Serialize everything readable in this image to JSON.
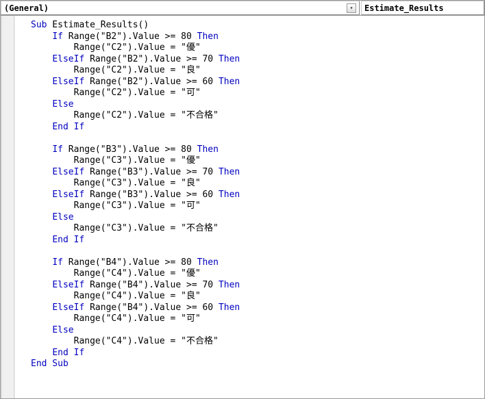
{
  "dropdowns": {
    "object": "(General)",
    "procedure": "Estimate_Results"
  },
  "code": {
    "sub_name": "Estimate_Results",
    "blocks": [
      {
        "src": "B2",
        "dst": "C2"
      },
      {
        "src": "B3",
        "dst": "C3"
      },
      {
        "src": "B4",
        "dst": "C4"
      }
    ],
    "thresholds": [
      {
        "op": ">=",
        "val": "80",
        "grade": "優"
      },
      {
        "op": ">=",
        "val": "70",
        "grade": "良"
      },
      {
        "op": ">=",
        "val": "60",
        "grade": "可"
      }
    ],
    "else_grade": "不合格",
    "keywords": {
      "sub": "Sub",
      "end_sub": "End Sub",
      "if": "If",
      "then": "Then",
      "elseif": "ElseIf",
      "else": "Else",
      "end_if": "End If"
    },
    "fn": "Range",
    "prop": "Value"
  },
  "colors": {
    "keyword": "#0000c0",
    "text": "#000000",
    "background": "#ffffff",
    "gutter": "#f0f0f0",
    "border": "#999999"
  }
}
